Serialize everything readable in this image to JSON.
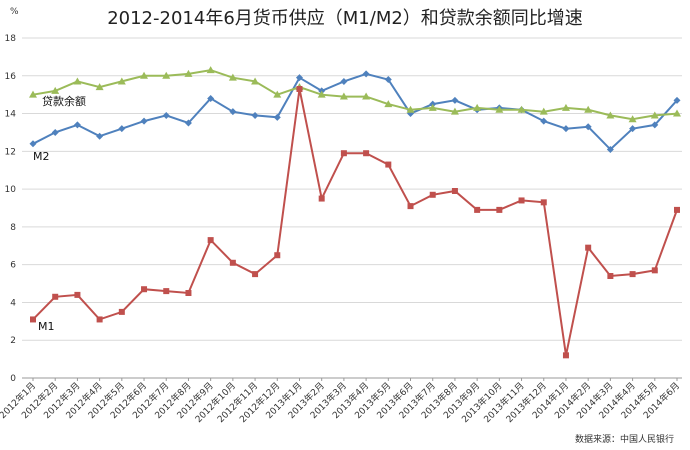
{
  "chart_data": {
    "type": "line",
    "title": "2012-2014年6月货币供应（M1/M2）和贷款余额同比增速",
    "ylabel": "%",
    "ylim": [
      0,
      18
    ],
    "yticks": [
      0,
      2,
      4,
      6,
      8,
      10,
      12,
      14,
      16,
      18
    ],
    "grid": true,
    "categories": [
      "2012年1月",
      "2012年2月",
      "2012年3月",
      "2012年4月",
      "2012年5月",
      "2012年6月",
      "2012年7月",
      "2012年8月",
      "2012年9月",
      "2012年10月",
      "2012年11月",
      "2012年12月",
      "2013年1月",
      "2013年2月",
      "2013年3月",
      "2013年4月",
      "2013年5月",
      "2013年6月",
      "2013年7月",
      "2013年8月",
      "2013年9月",
      "2013年10月",
      "2013年11月",
      "2013年12月",
      "2014年1月",
      "2014年2月",
      "2014年3月",
      "2014年4月",
      "2014年5月",
      "2014年6月"
    ],
    "series": [
      {
        "name": "M2",
        "color": "#4f81bd",
        "marker": "diamond",
        "values": [
          12.4,
          13.0,
          13.4,
          12.8,
          13.2,
          13.6,
          13.9,
          13.5,
          14.8,
          14.1,
          13.9,
          13.8,
          15.9,
          15.2,
          15.7,
          16.1,
          15.8,
          14.0,
          14.5,
          14.7,
          14.2,
          14.3,
          14.2,
          13.6,
          13.2,
          13.3,
          12.1,
          13.2,
          13.4,
          14.7
        ]
      },
      {
        "name": "贷款余额",
        "color": "#9bbb59",
        "marker": "triangle",
        "values": [
          15.0,
          15.2,
          15.7,
          15.4,
          15.7,
          16.0,
          16.0,
          16.1,
          16.3,
          15.9,
          15.7,
          15.0,
          15.4,
          15.0,
          14.9,
          14.9,
          14.5,
          14.2,
          14.3,
          14.1,
          14.3,
          14.2,
          14.2,
          14.1,
          14.3,
          14.2,
          13.9,
          13.7,
          13.9,
          14.0
        ]
      },
      {
        "name": "M1",
        "color": "#c0504d",
        "marker": "square",
        "values": [
          3.1,
          4.3,
          4.4,
          3.1,
          3.5,
          4.7,
          4.6,
          4.5,
          7.3,
          6.1,
          5.5,
          6.5,
          15.3,
          9.5,
          11.9,
          11.9,
          11.3,
          9.1,
          9.7,
          9.9,
          8.9,
          8.9,
          9.4,
          9.3,
          1.2,
          6.9,
          5.4,
          5.5,
          5.7,
          8.9
        ]
      }
    ],
    "source": "数据来源：中国人民银行"
  }
}
